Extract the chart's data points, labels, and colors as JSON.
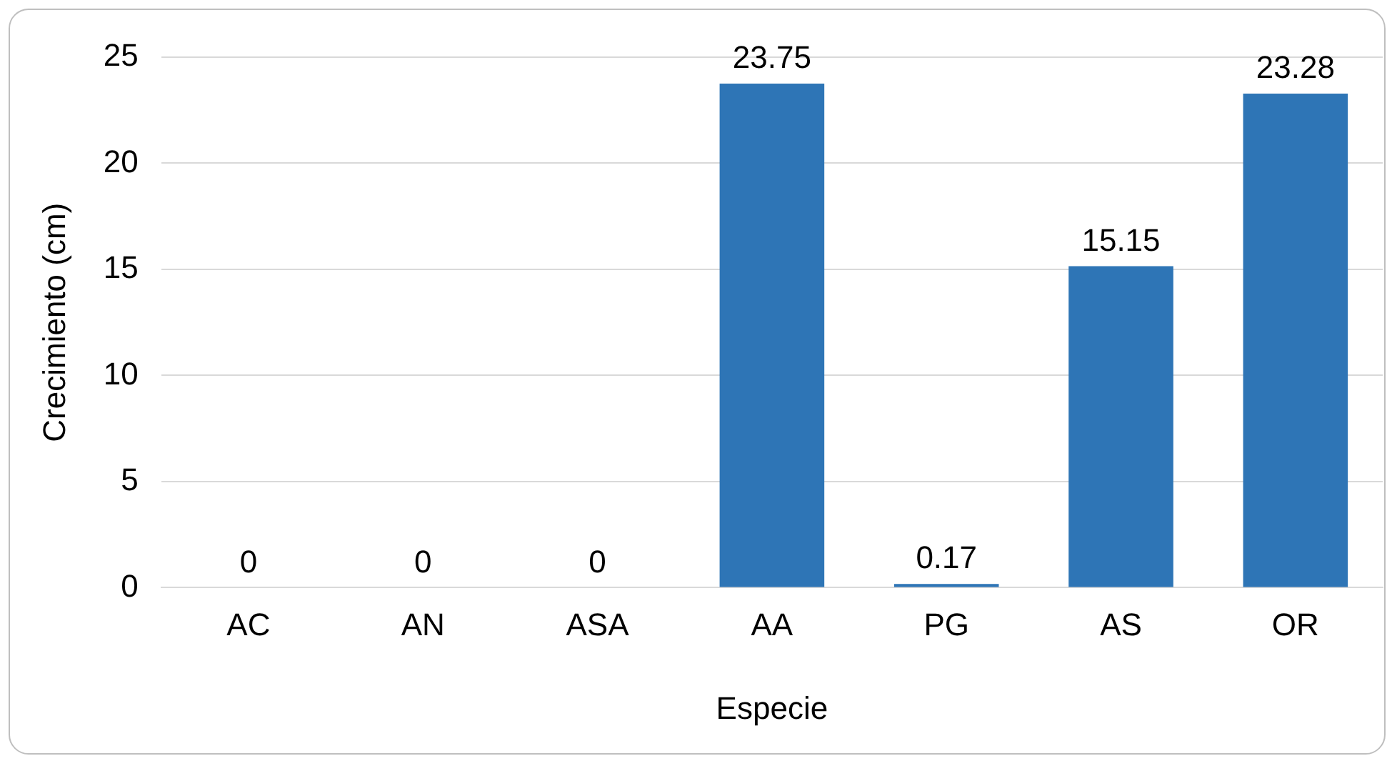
{
  "chart_data": {
    "type": "bar",
    "xlabel": "Especie",
    "ylabel": "Crecimiento (cm)",
    "categories": [
      "AC",
      "AN",
      "ASA",
      "AA",
      "PG",
      "AS",
      "OR"
    ],
    "values": [
      0,
      0,
      0,
      23.75,
      0.17,
      15.15,
      23.28
    ],
    "color": "#2e75b6",
    "ylim": [
      0,
      25
    ],
    "yticks": [
      0,
      5,
      10,
      15,
      20,
      25
    ],
    "grid": "y",
    "data_labels": true,
    "legend": false
  }
}
